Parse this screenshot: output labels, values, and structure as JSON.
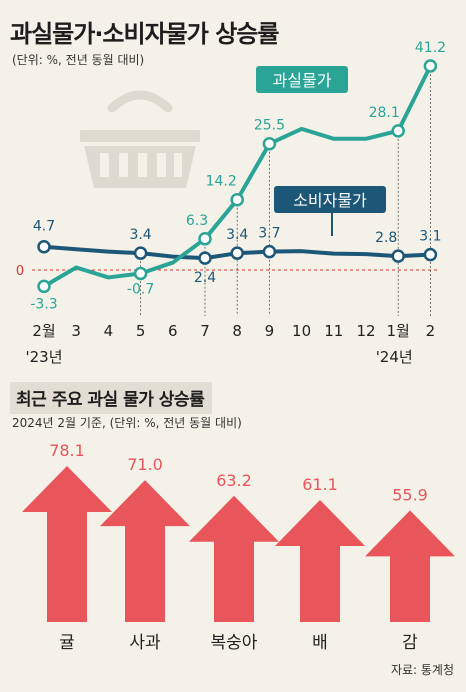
{
  "title": "과실물가·소비자물가 상승률",
  "line_subtitle": "(단위: %, 전년 동월 대비)",
  "bar_section_title": "최근 주요 과실 물가 상승률",
  "bar_subtitle": "2024년 2월 기준, (단위: %, 전년 동월 대비)",
  "source": "자료: 통계청",
  "colors": {
    "fruit": "#2aa496",
    "consumer": "#1d5778",
    "arrow": "#e8555a",
    "zero": "#d9342b"
  },
  "zero_label": "0",
  "chart_data": [
    {
      "type": "line",
      "x": [
        "2월\n'23년",
        "3",
        "4",
        "5",
        "6",
        "7",
        "8",
        "9",
        "10",
        "11",
        "12",
        "1월\n'24년",
        "2"
      ],
      "ylim": [
        -5,
        43
      ],
      "grid": false,
      "legend": "inline labels",
      "series": [
        {
          "name": "과실물가",
          "values": [
            -3.3,
            0.5,
            -1.5,
            -0.7,
            1.5,
            6.3,
            14.2,
            25.5,
            28.5,
            26.5,
            26.5,
            28.1,
            41.2
          ],
          "labels": [
            "-3.3",
            "",
            "",
            "-0.7",
            "",
            "6.3",
            "14.2",
            "25.5",
            "",
            "",
            "",
            "28.1",
            "41.2"
          ],
          "markers": [
            0,
            3,
            5,
            6,
            7,
            11,
            12
          ]
        },
        {
          "name": "소비자물가",
          "values": [
            4.7,
            4.2,
            3.7,
            3.4,
            2.7,
            2.4,
            3.4,
            3.7,
            3.8,
            3.3,
            3.2,
            2.8,
            3.1
          ],
          "labels": [
            "4.7",
            "",
            "",
            "3.4",
            "",
            "2.4",
            "3.4",
            "3.7",
            "",
            "",
            "",
            "2.8",
            "3.1"
          ],
          "markers": [
            0,
            3,
            5,
            6,
            7,
            11,
            12
          ]
        }
      ]
    },
    {
      "type": "bar",
      "categories": [
        "귤",
        "사과",
        "복숭아",
        "배",
        "감"
      ],
      "values": [
        78.1,
        71.0,
        63.2,
        61.1,
        55.9
      ],
      "value_labels": [
        "78.1",
        "71.0",
        "63.2",
        "61.1",
        "55.9"
      ]
    }
  ]
}
